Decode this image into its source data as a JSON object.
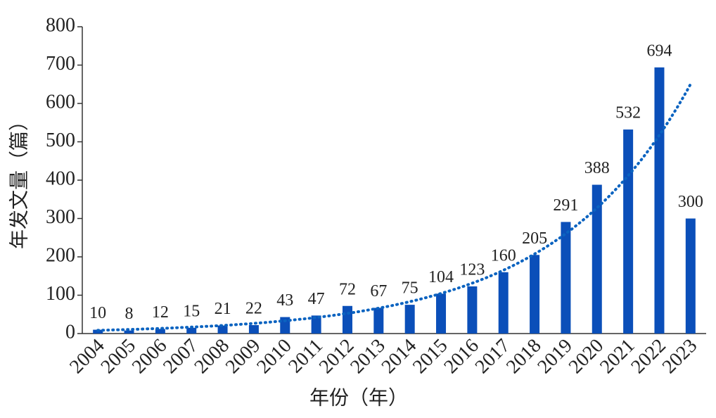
{
  "chart_data": {
    "type": "bar",
    "x_label": "年份（年）",
    "y_label": "年发文量（篇）",
    "categories": [
      "2004",
      "2005",
      "2006",
      "2007",
      "2008",
      "2009",
      "2010",
      "2011",
      "2012",
      "2013",
      "2014",
      "2015",
      "2016",
      "2017",
      "2018",
      "2019",
      "2020",
      "2021",
      "2022",
      "2023"
    ],
    "values": [
      10,
      8,
      12,
      15,
      21,
      22,
      43,
      47,
      72,
      67,
      75,
      104,
      123,
      160,
      205,
      291,
      388,
      532,
      694,
      300
    ],
    "color": "#0b4fb9",
    "trendline": "exponential",
    "trendline_color": "#0b63c0",
    "ylim": [
      0,
      800
    ],
    "yticks": [
      0,
      100,
      200,
      300,
      400,
      500,
      600,
      700,
      800
    ],
    "grid": false
  }
}
